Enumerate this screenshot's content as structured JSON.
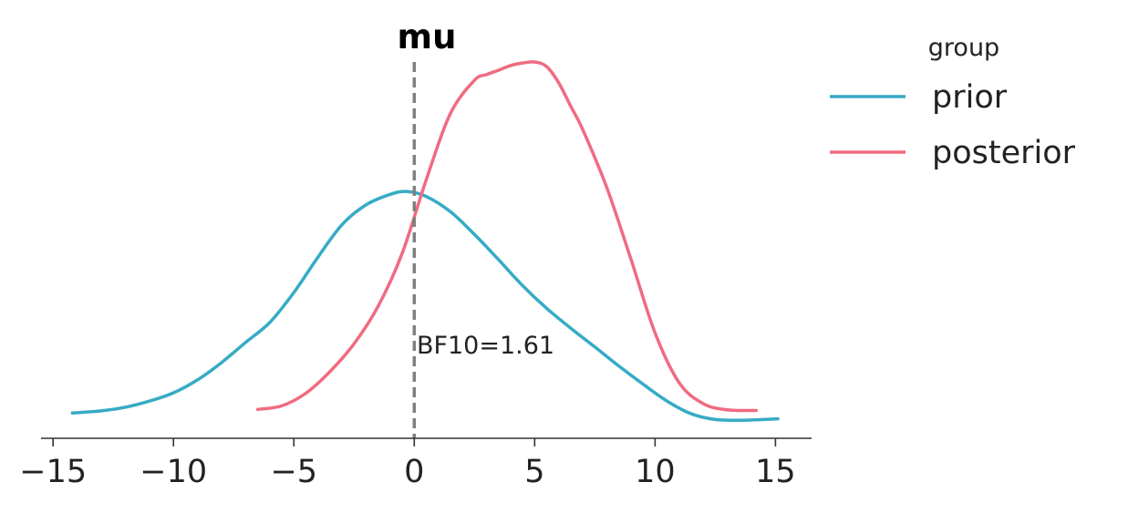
{
  "chart_data": {
    "type": "line",
    "title": "mu",
    "xlabel": "",
    "ylabel": "",
    "xlim": [
      -15.5,
      16.5
    ],
    "ylim": [
      0,
      0.1
    ],
    "xticks": [
      -15,
      -10,
      -5,
      0,
      5,
      10,
      15
    ],
    "xtick_labels": [
      "−15",
      "−10",
      "−5",
      "0",
      "5",
      "10",
      "15"
    ],
    "reference_line": {
      "x": 0,
      "style": "dashed",
      "color": "#808080"
    },
    "annotation": {
      "text": "BF10=1.61",
      "x": 0.1,
      "y": 0.0235
    },
    "legend": {
      "title": "group",
      "position": "outside-right",
      "entries": [
        "prior",
        "posterior"
      ]
    },
    "series": [
      {
        "name": "prior",
        "color": "#36ABC5",
        "x": [
          -14.2,
          -13.0,
          -12.0,
          -11.0,
          -10.0,
          -9.0,
          -8.0,
          -7.0,
          -6.0,
          -5.0,
          -4.0,
          -3.0,
          -2.0,
          -1.0,
          -0.3,
          0.5,
          1.5,
          2.5,
          3.5,
          4.5,
          5.5,
          6.5,
          7.5,
          8.5,
          9.5,
          10.5,
          11.5,
          12.5,
          13.5,
          14.5,
          15.1
        ],
        "y": [
          0.007,
          0.0076,
          0.0086,
          0.0103,
          0.0126,
          0.0162,
          0.021,
          0.0266,
          0.0321,
          0.0404,
          0.0502,
          0.0592,
          0.0647,
          0.0676,
          0.0684,
          0.067,
          0.0628,
          0.0565,
          0.0495,
          0.0423,
          0.036,
          0.0305,
          0.0253,
          0.02,
          0.015,
          0.0103,
          0.0068,
          0.0052,
          0.005,
          0.0052,
          0.0054
        ]
      },
      {
        "name": "posterior",
        "color": "#F06B81",
        "x": [
          -6.5,
          -5.5,
          -4.5,
          -3.5,
          -2.5,
          -1.5,
          -0.5,
          0.5,
          1.5,
          2.5,
          3.0,
          3.5,
          4.0,
          4.5,
          5.0,
          5.5,
          6.0,
          6.5,
          7.0,
          8.0,
          9.0,
          10.0,
          11.0,
          12.0,
          13.0,
          14.2
        ],
        "y": [
          0.008,
          0.009,
          0.0125,
          0.0185,
          0.0262,
          0.0366,
          0.0513,
          0.0717,
          0.09,
          0.0992,
          0.1008,
          0.102,
          0.1033,
          0.104,
          0.1043,
          0.103,
          0.0985,
          0.092,
          0.0855,
          0.0694,
          0.0496,
          0.0292,
          0.0154,
          0.0096,
          0.0079,
          0.0077
        ]
      }
    ]
  }
}
